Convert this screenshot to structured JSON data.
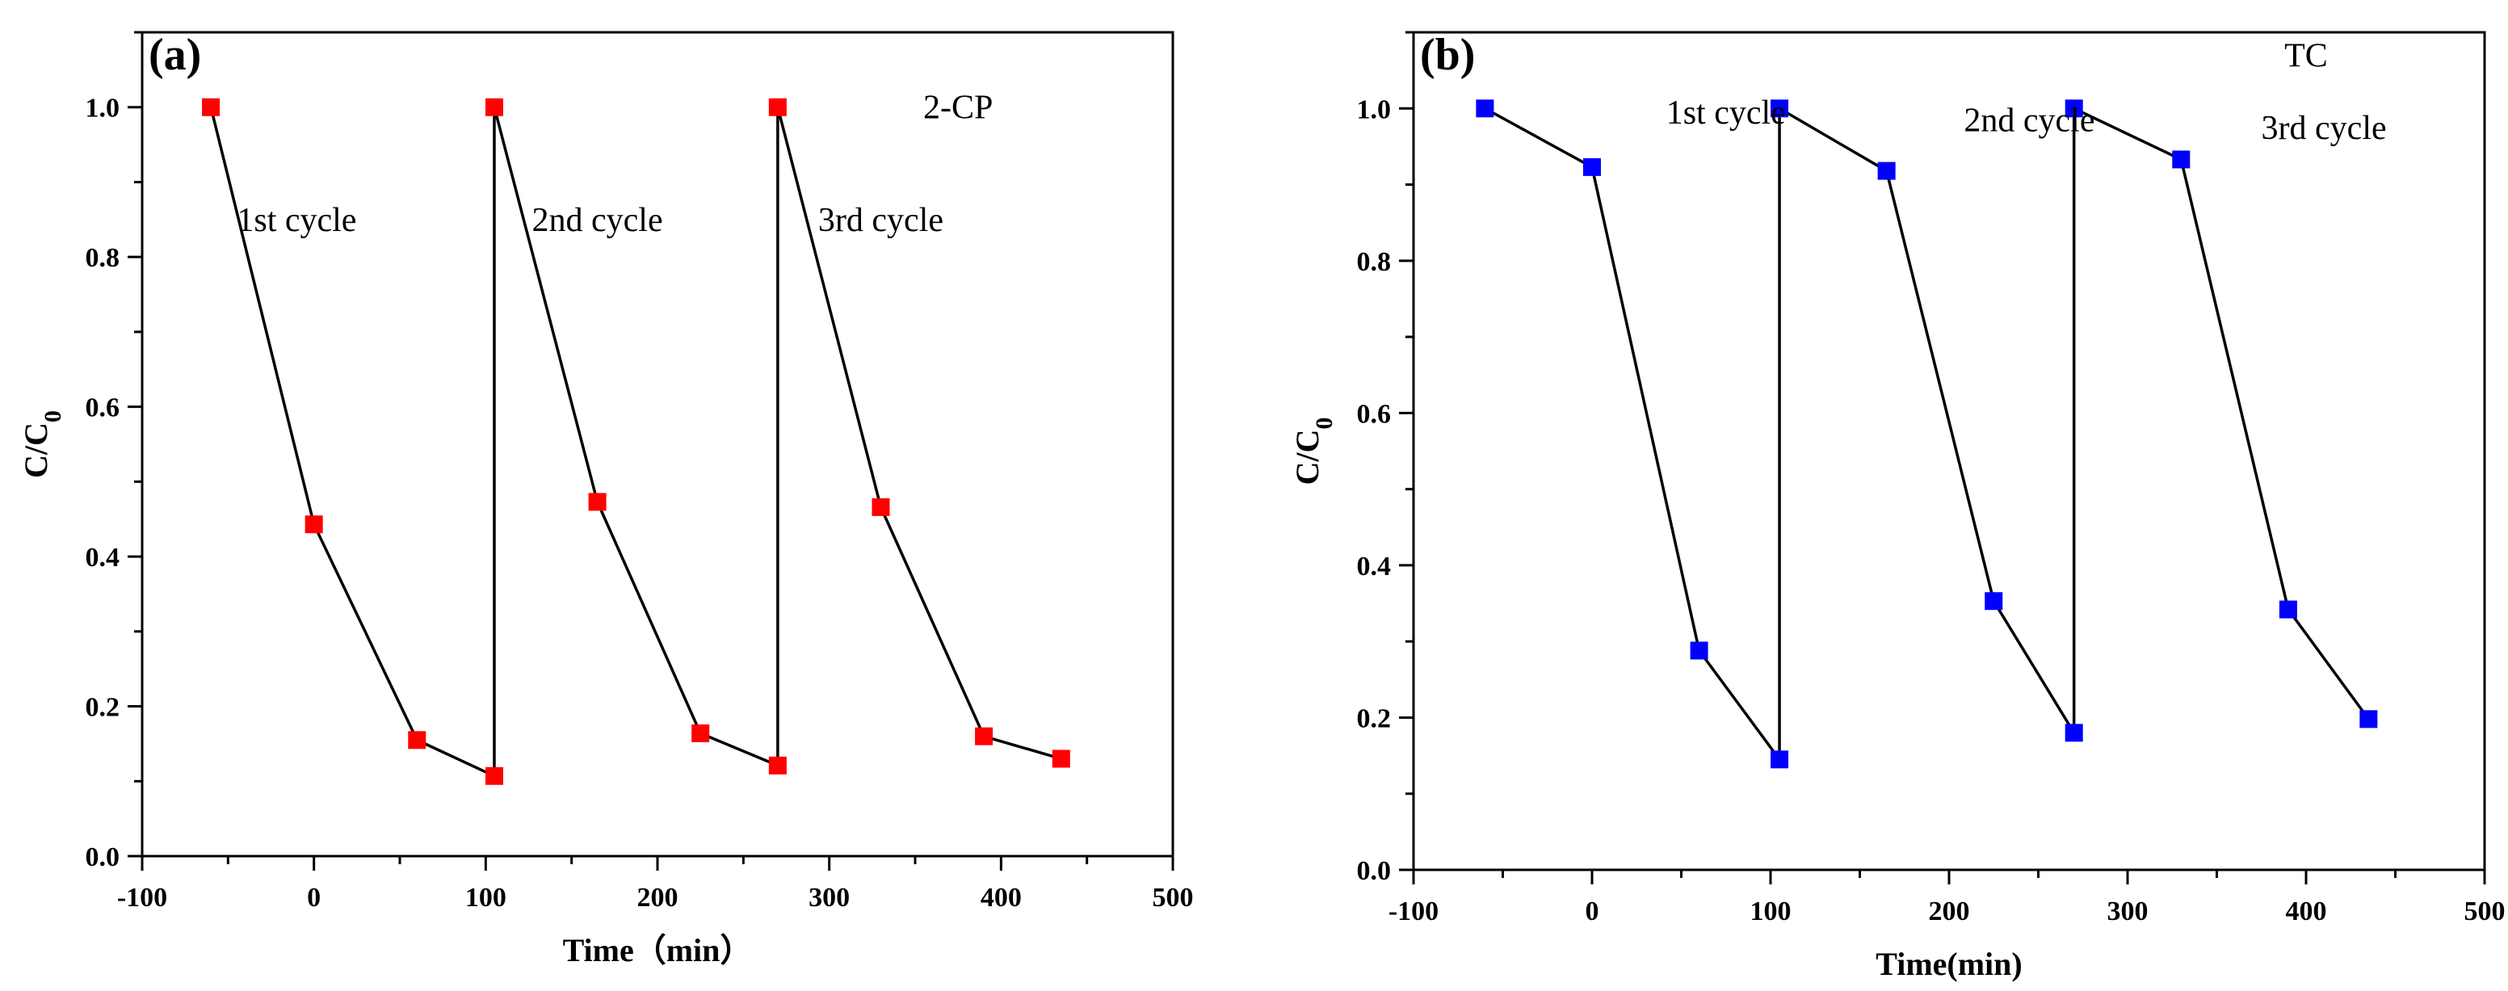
{
  "chart_data": [
    {
      "type": "line",
      "panel_label": "(a)",
      "series_name": "2-CP",
      "marker_color": "#ff0000",
      "x": [
        -60,
        0,
        60,
        105,
        105,
        165,
        225,
        270,
        270,
        330,
        390,
        435
      ],
      "y": [
        1.0,
        0.443,
        0.155,
        0.107,
        1.0,
        0.473,
        0.164,
        0.121,
        1.0,
        0.466,
        0.16,
        0.13
      ],
      "xlim": [
        -100,
        500
      ],
      "ylim": [
        0.0,
        1.1
      ],
      "xticks": [
        -100,
        0,
        100,
        200,
        300,
        400,
        500
      ],
      "yticks": [
        0.0,
        0.2,
        0.4,
        0.6,
        0.8,
        1.0
      ],
      "xtick_labels": [
        "-100",
        "0",
        "100",
        "200",
        "300",
        "400",
        "500"
      ],
      "ytick_labels": [
        "0.0",
        "0.2",
        "0.4",
        "0.6",
        "0.8",
        "1.0"
      ],
      "xlabel": "Time（min）",
      "ylabel": "C/C",
      "ylabel_sub": "0",
      "annotations": [
        {
          "text": "1st cycle",
          "x": -10,
          "y": 0.85
        },
        {
          "text": "2nd cycle",
          "x": 165,
          "y": 0.85
        },
        {
          "text": "3rd cycle",
          "x": 330,
          "y": 0.85
        },
        {
          "text": "2-CP",
          "x": 375,
          "y": 1.0
        }
      ]
    },
    {
      "type": "line",
      "panel_label": "(b)",
      "series_name": "TC",
      "marker_color": "#0000ff",
      "x": [
        -60,
        0,
        60,
        105,
        105,
        165,
        225,
        270,
        270,
        330,
        390,
        435
      ],
      "y": [
        1.0,
        0.923,
        0.288,
        0.145,
        1.0,
        0.918,
        0.353,
        0.18,
        1.0,
        0.933,
        0.342,
        0.198
      ],
      "xlim": [
        -100,
        500
      ],
      "ylim": [
        0.0,
        1.1
      ],
      "xticks": [
        -100,
        0,
        100,
        200,
        300,
        400,
        500
      ],
      "yticks": [
        0.0,
        0.2,
        0.4,
        0.6,
        0.8,
        1.0
      ],
      "xtick_labels": [
        "-100",
        "0",
        "100",
        "200",
        "300",
        "400",
        "500"
      ],
      "ytick_labels": [
        "0.0",
        "0.2",
        "0.4",
        "0.6",
        "0.8",
        "1.0"
      ],
      "xlabel": "Time(min)",
      "ylabel": "C/C",
      "ylabel_sub": "0",
      "annotations": [
        {
          "text": "1st cycle",
          "x": 75,
          "y": 0.995
        },
        {
          "text": "2nd cycle",
          "x": 245,
          "y": 0.985
        },
        {
          "text": "3rd cycle",
          "x": 410,
          "y": 0.975
        },
        {
          "text": "TC",
          "x": 400,
          "y": 1.07
        }
      ]
    }
  ]
}
